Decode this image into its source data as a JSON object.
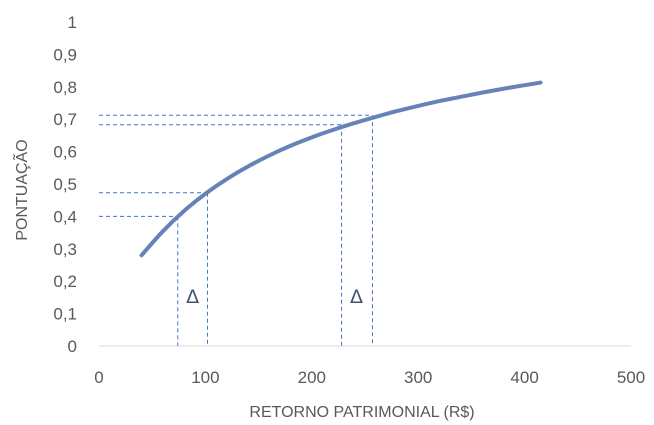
{
  "chart_data": {
    "type": "line",
    "title": "",
    "xlabel": "RETORNO PATRIMONIAL (R$)",
    "ylabel": "PONTUAÇÃO",
    "xlim": [
      0,
      500
    ],
    "ylim": [
      0,
      1
    ],
    "x_ticks": [
      "0",
      "100",
      "200",
      "300",
      "400",
      "500"
    ],
    "y_ticks": [
      "0",
      "0,1",
      "0,2",
      "0,3",
      "0,4",
      "0,5",
      "0,6",
      "0,7",
      "0,8",
      "0,9",
      "1"
    ],
    "grid": false,
    "legend": "none",
    "series": [
      {
        "color": "#6583b8",
        "x": [
          40,
          60,
          80,
          100,
          120,
          140,
          160,
          180,
          200,
          220,
          240,
          260,
          280,
          300,
          320,
          340,
          360,
          380,
          400,
          415
        ],
        "y": [
          0.28,
          0.354,
          0.417,
          0.47,
          0.515,
          0.554,
          0.588,
          0.618,
          0.644,
          0.667,
          0.688,
          0.707,
          0.725,
          0.741,
          0.756,
          0.769,
          0.782,
          0.794,
          0.805,
          0.813
        ]
      }
    ],
    "reference_lines": [
      {
        "x": 74,
        "y": 0.4,
        "color": "#4472c4"
      },
      {
        "x": 102,
        "y": 0.473,
        "color": "#4472c4"
      },
      {
        "x": 228,
        "y": 0.683,
        "color": "#4472c4"
      },
      {
        "x": 257,
        "y": 0.712,
        "color": "#4472c4"
      }
    ],
    "annotations": [
      {
        "text": "Δ",
        "x": 88,
        "y": 0.155
      },
      {
        "text": "Δ",
        "x": 242,
        "y": 0.155
      }
    ],
    "axis_color": "#d9d9d9"
  }
}
